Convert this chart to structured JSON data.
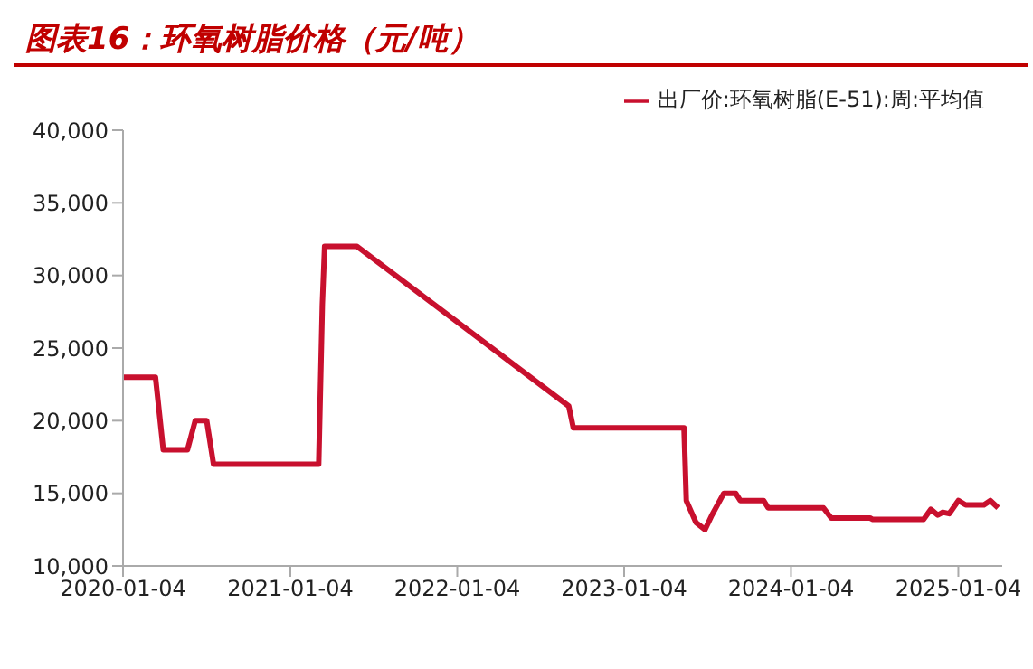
{
  "chart_data": {
    "type": "line",
    "title": "图表16：环氧树脂价格（元/吨）",
    "x": [
      "2020-01-04",
      "2020-03-15",
      "2020-04-01",
      "2020-05-24",
      "2020-06-10",
      "2020-07-05",
      "2020-07-20",
      "2021-03-07",
      "2021-03-15",
      "2021-03-20",
      "2021-05-30",
      "2022-09-05",
      "2022-09-15",
      "2023-05-15",
      "2023-05-20",
      "2023-06-10",
      "2023-06-30",
      "2023-07-15",
      "2023-08-10",
      "2023-09-05",
      "2023-09-15",
      "2023-11-05",
      "2023-11-15",
      "2024-03-15",
      "2024-04-01",
      "2024-06-25",
      "2024-07-01",
      "2024-10-20",
      "2024-11-05",
      "2024-11-20",
      "2024-12-01",
      "2024-12-15",
      "2025-01-04",
      "2025-01-20",
      "2025-03-01",
      "2025-03-15",
      "2025-04-01"
    ],
    "series": [
      {
        "name": "出厂价:环氧树脂(E-51):周:平均值",
        "color": "#c8102e",
        "values": [
          23000,
          23000,
          18000,
          18000,
          20000,
          20000,
          17000,
          17000,
          28000,
          32000,
          32000,
          21000,
          19500,
          19500,
          14500,
          13000,
          12500,
          13500,
          15000,
          15000,
          14500,
          14500,
          14000,
          14000,
          13300,
          13300,
          13200,
          13200,
          13900,
          13500,
          13700,
          13600,
          14500,
          14200,
          14200,
          14500,
          14000
        ]
      }
    ],
    "xlim": [
      "2020-01-04",
      "2025-04-10"
    ],
    "xticks": [
      "2020-01-04",
      "2021-01-04",
      "2022-01-04",
      "2023-01-04",
      "2024-01-04",
      "2025-01-04"
    ],
    "ylim": [
      10000,
      40000
    ],
    "yticks": [
      {
        "value": 10000,
        "label": "10,000"
      },
      {
        "value": 15000,
        "label": "15,000"
      },
      {
        "value": 20000,
        "label": "20,000"
      },
      {
        "value": 25000,
        "label": "25,000"
      },
      {
        "value": 30000,
        "label": "30,000"
      },
      {
        "value": 35000,
        "label": "35,000"
      },
      {
        "value": 40000,
        "label": "40,000"
      }
    ],
    "grid": false,
    "legend": "top right",
    "marker": "none",
    "line_style": "solid"
  }
}
